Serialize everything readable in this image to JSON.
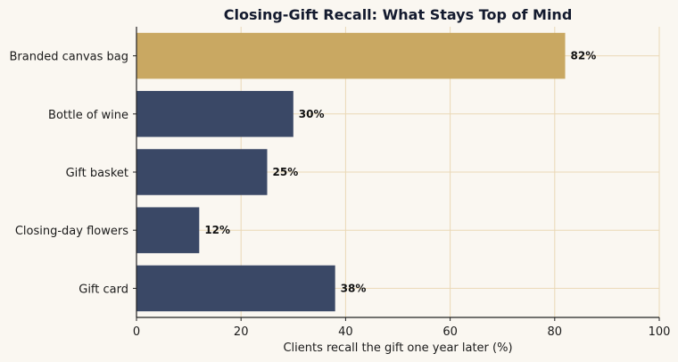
{
  "chart_data": {
    "type": "bar",
    "orientation": "horizontal",
    "title": "Closing-Gift Recall: What Stays Top of Mind",
    "xlabel": "Clients recall the gift one year later (%)",
    "ylabel": "",
    "categories": [
      "Branded canvas bag",
      "Bottle of wine",
      "Gift basket",
      "Closing-day flowers",
      "Gift card"
    ],
    "values": [
      82,
      30,
      25,
      12,
      38
    ],
    "value_labels": [
      "82%",
      "30%",
      "25%",
      "12%",
      "38%"
    ],
    "highlight_index": 0,
    "xlim": [
      0,
      100
    ],
    "xticks": [
      0,
      20,
      40,
      60,
      80,
      100
    ],
    "grid": true,
    "colors": {
      "highlight": "#c9a862",
      "bar": "#3a4866",
      "grid": "#ead8b6",
      "axis": "#222222",
      "background": "#faf7f1"
    }
  }
}
